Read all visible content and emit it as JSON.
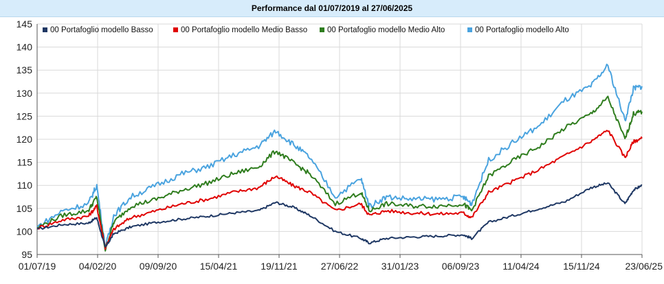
{
  "title": "Performance dal 01/07/2019 al 27/06/2025",
  "colors": {
    "background": "#ffffff",
    "title_bg": "#d7ecfb",
    "grid": "#d9d9d9"
  },
  "chart_data": {
    "type": "line",
    "title": "Performance dal 01/07/2019 al 27/06/2025",
    "xlabel": "",
    "ylabel": "",
    "ylim": [
      95,
      145
    ],
    "yticks": [
      95,
      100,
      105,
      110,
      115,
      120,
      125,
      130,
      135,
      140,
      145
    ],
    "xticks": [
      "01/07/19",
      "04/02/20",
      "09/09/20",
      "15/04/21",
      "19/11/21",
      "27/06/22",
      "31/01/23",
      "06/09/23",
      "11/04/24",
      "15/11/24",
      "23/06/25"
    ],
    "grid": true,
    "legend_position": "top",
    "x": [
      "2019-07",
      "2019-10",
      "2020-01",
      "2020-02",
      "2020-03",
      "2020-04",
      "2020-06",
      "2020-09",
      "2020-12",
      "2021-03",
      "2021-06",
      "2021-09",
      "2021-11",
      "2022-01",
      "2022-03",
      "2022-06",
      "2022-09",
      "2022-10",
      "2022-12",
      "2023-03",
      "2023-06",
      "2023-09",
      "2023-10",
      "2023-12",
      "2024-03",
      "2024-06",
      "2024-09",
      "2024-12",
      "2025-02",
      "2025-04",
      "2025-05",
      "2025-06"
    ],
    "series": [
      {
        "name": "00 Portafoglio modello Basso",
        "color": "#1f3864",
        "values": [
          100.5,
          101.5,
          101.8,
          103.0,
          96.5,
          99.5,
          101.0,
          102.0,
          102.7,
          103.3,
          104.0,
          104.5,
          106.3,
          105.3,
          103.5,
          100.0,
          98.5,
          97.5,
          98.5,
          98.8,
          99.0,
          99.3,
          98.5,
          102.0,
          103.5,
          105.0,
          106.5,
          109.5,
          110.5,
          106.0,
          109.0,
          110.0
        ]
      },
      {
        "name": "00 Portafoglio modello Medio Basso",
        "color": "#e00000",
        "values": [
          100.7,
          102.5,
          103.3,
          105.5,
          96.5,
          100.5,
          103.0,
          104.5,
          106.0,
          107.0,
          108.5,
          109.5,
          112.0,
          110.0,
          108.5,
          104.5,
          106.0,
          103.5,
          104.5,
          104.0,
          103.8,
          104.0,
          103.0,
          108.5,
          111.0,
          113.5,
          116.5,
          119.5,
          122.0,
          116.0,
          119.5,
          120.2
        ]
      },
      {
        "name": "00 Portafoglio modello Medio Alto",
        "color": "#2f7d1e",
        "values": [
          100.8,
          103.5,
          104.5,
          107.5,
          96.0,
          102.0,
          105.5,
          107.0,
          109.0,
          110.5,
          112.5,
          114.0,
          117.5,
          115.0,
          112.5,
          106.0,
          108.5,
          104.5,
          106.0,
          105.5,
          105.5,
          106.0,
          104.5,
          112.0,
          115.5,
          118.5,
          122.5,
          125.5,
          129.0,
          120.0,
          125.5,
          126.0
        ]
      },
      {
        "name": "00 Portafoglio modello Alto",
        "color": "#4aa3df",
        "values": [
          101.0,
          104.5,
          106.0,
          110.0,
          96.5,
          103.5,
          107.5,
          110.0,
          112.5,
          114.0,
          116.5,
          118.5,
          121.8,
          119.0,
          116.0,
          107.5,
          111.5,
          105.5,
          107.5,
          107.0,
          107.0,
          107.5,
          106.0,
          115.5,
          119.5,
          123.0,
          128.5,
          131.5,
          136.0,
          124.0,
          131.0,
          131.5
        ]
      }
    ]
  }
}
